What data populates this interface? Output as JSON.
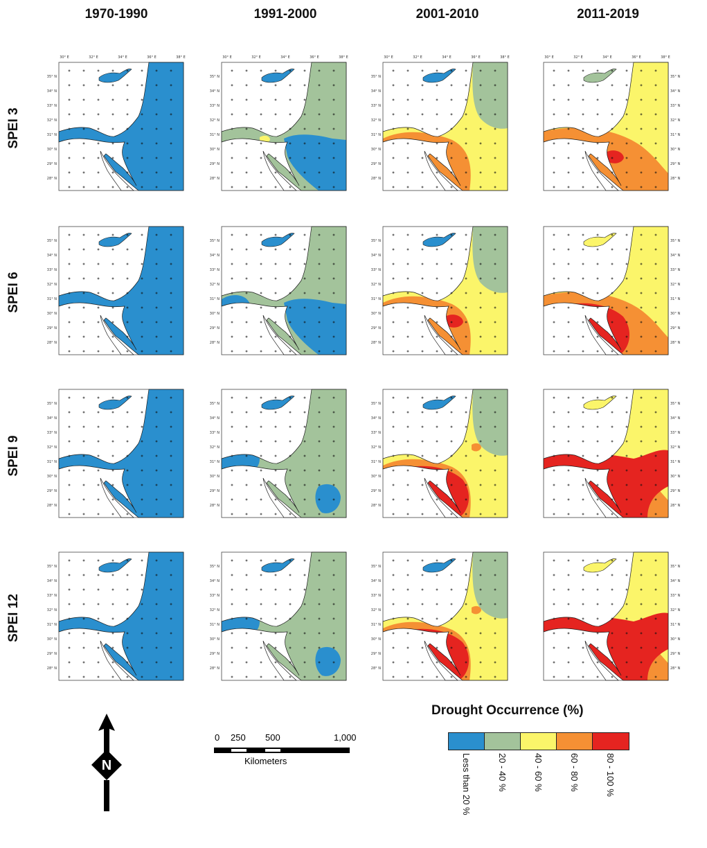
{
  "columns": [
    "1970-1990",
    "1991-2000",
    "2001-2010",
    "2011-2019"
  ],
  "rows": [
    "SPEI 3",
    "SPEI 6",
    "SPEI 9",
    "SPEI 12"
  ],
  "lon_labels": [
    "30° E",
    "32° E",
    "34° E",
    "36° E",
    "38° E"
  ],
  "lat_labels": [
    "35° N",
    "34° N",
    "33° N",
    "32° N",
    "31° N",
    "30° N",
    "29° N",
    "28° N"
  ],
  "legend": {
    "title": "Drought Occurrence (%)",
    "classes": [
      {
        "label": "Less than 20 %",
        "color": "#2a8fce"
      },
      {
        "label": "20 - 40 %",
        "color": "#a3c39b"
      },
      {
        "label": "40 - 60 %",
        "color": "#fbf56a"
      },
      {
        "label": "60 - 80 %",
        "color": "#f59034"
      },
      {
        "label": "80 - 100 %",
        "color": "#e52420"
      }
    ]
  },
  "scale": {
    "ticks": [
      "0",
      "250",
      "500",
      "1,000"
    ],
    "unit": "Kilometers"
  },
  "north_label": "N",
  "colors": {
    "sea": "#ffffff",
    "outline": "#1a1a1a"
  },
  "panels": [
    {
      "row": 0,
      "col": 0,
      "base": "blue",
      "cyprus": "blue",
      "patches": []
    },
    {
      "row": 0,
      "col": 1,
      "base": "green",
      "cyprus": "blue",
      "patches": [
        {
          "cls": "blue",
          "shape": "east-low"
        },
        {
          "cls": "blue",
          "shape": "sw-blob"
        },
        {
          "cls": "yellow",
          "shape": "tiny-yellow"
        }
      ]
    },
    {
      "row": 0,
      "col": 2,
      "base": "yellow",
      "cyprus": "blue",
      "patches": [
        {
          "cls": "green",
          "shape": "ne-strip"
        },
        {
          "cls": "orange",
          "shape": "sw-large"
        }
      ]
    },
    {
      "row": 0,
      "col": 3,
      "base": "yellow",
      "cyprus": "green",
      "patches": [
        {
          "cls": "orange",
          "shape": "south-wide"
        },
        {
          "cls": "red",
          "shape": "small-red"
        }
      ]
    },
    {
      "row": 1,
      "col": 0,
      "base": "blue",
      "cyprus": "blue",
      "patches": []
    },
    {
      "row": 1,
      "col": 1,
      "base": "green",
      "cyprus": "blue",
      "patches": [
        {
          "cls": "blue",
          "shape": "east-low"
        },
        {
          "cls": "blue",
          "shape": "nw-small"
        }
      ]
    },
    {
      "row": 1,
      "col": 2,
      "base": "yellow",
      "cyprus": "blue",
      "patches": [
        {
          "cls": "green",
          "shape": "ne-strip"
        },
        {
          "cls": "orange",
          "shape": "sw-large"
        },
        {
          "cls": "red",
          "shape": "small-red"
        }
      ]
    },
    {
      "row": 1,
      "col": 3,
      "base": "yellow",
      "cyprus": "yellow",
      "patches": [
        {
          "cls": "orange",
          "shape": "south-wide"
        },
        {
          "cls": "red",
          "shape": "red-large"
        }
      ]
    },
    {
      "row": 2,
      "col": 0,
      "base": "blue",
      "cyprus": "blue",
      "patches": []
    },
    {
      "row": 2,
      "col": 1,
      "base": "green",
      "cyprus": "blue",
      "patches": [
        {
          "cls": "blue",
          "shape": "west-blob"
        },
        {
          "cls": "blue",
          "shape": "se-blob"
        }
      ]
    },
    {
      "row": 2,
      "col": 2,
      "base": "yellow",
      "cyprus": "blue",
      "patches": [
        {
          "cls": "green",
          "shape": "ne-strip"
        },
        {
          "cls": "orange",
          "shape": "sw-large"
        },
        {
          "cls": "red",
          "shape": "red-large"
        },
        {
          "cls": "orange",
          "shape": "dot"
        }
      ]
    },
    {
      "row": 2,
      "col": 3,
      "base": "yellow",
      "cyprus": "yellow",
      "patches": [
        {
          "cls": "orange",
          "shape": "south-wide"
        },
        {
          "cls": "red",
          "shape": "red-wide"
        }
      ]
    },
    {
      "row": 3,
      "col": 0,
      "base": "blue",
      "cyprus": "blue",
      "patches": []
    },
    {
      "row": 3,
      "col": 1,
      "base": "green",
      "cyprus": "blue",
      "patches": [
        {
          "cls": "blue",
          "shape": "west-blob"
        },
        {
          "cls": "blue",
          "shape": "se-blob"
        }
      ]
    },
    {
      "row": 3,
      "col": 2,
      "base": "yellow",
      "cyprus": "blue",
      "patches": [
        {
          "cls": "green",
          "shape": "ne-strip"
        },
        {
          "cls": "orange",
          "shape": "sw-large"
        },
        {
          "cls": "red",
          "shape": "red-large"
        },
        {
          "cls": "orange",
          "shape": "dot"
        }
      ]
    },
    {
      "row": 3,
      "col": 3,
      "base": "yellow",
      "cyprus": "yellow",
      "patches": [
        {
          "cls": "orange",
          "shape": "south-wide"
        },
        {
          "cls": "red",
          "shape": "red-wide"
        }
      ]
    }
  ]
}
